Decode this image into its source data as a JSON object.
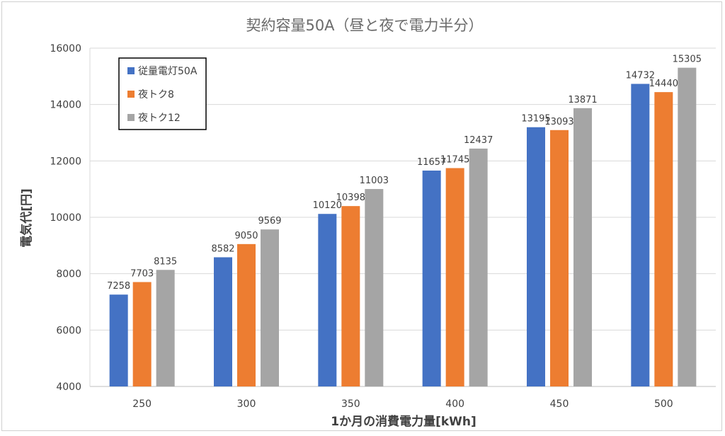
{
  "chart_data": {
    "type": "bar",
    "title": "契約容量50A（昼と夜で電力半分）",
    "xlabel": "1か月の消費電力量[kWh]",
    "ylabel": "電気代[円]",
    "ylim": [
      4000,
      16000
    ],
    "yticks": [
      4000,
      6000,
      8000,
      10000,
      12000,
      14000,
      16000
    ],
    "categories": [
      "250",
      "300",
      "350",
      "400",
      "450",
      "500"
    ],
    "grid": "horizontal",
    "legend_position": "top-left",
    "series": [
      {
        "name": "従量電灯50A",
        "color": "#4472C4",
        "values": [
          7258,
          8582,
          10120,
          11657,
          13195,
          14732
        ]
      },
      {
        "name": "夜トク8",
        "color": "#ED7D31",
        "values": [
          7703,
          9050,
          10398,
          11745,
          13093,
          14440
        ]
      },
      {
        "name": "夜トク12",
        "color": "#A5A5A5",
        "values": [
          8135,
          9569,
          11003,
          12437,
          13871,
          15305
        ]
      }
    ]
  }
}
